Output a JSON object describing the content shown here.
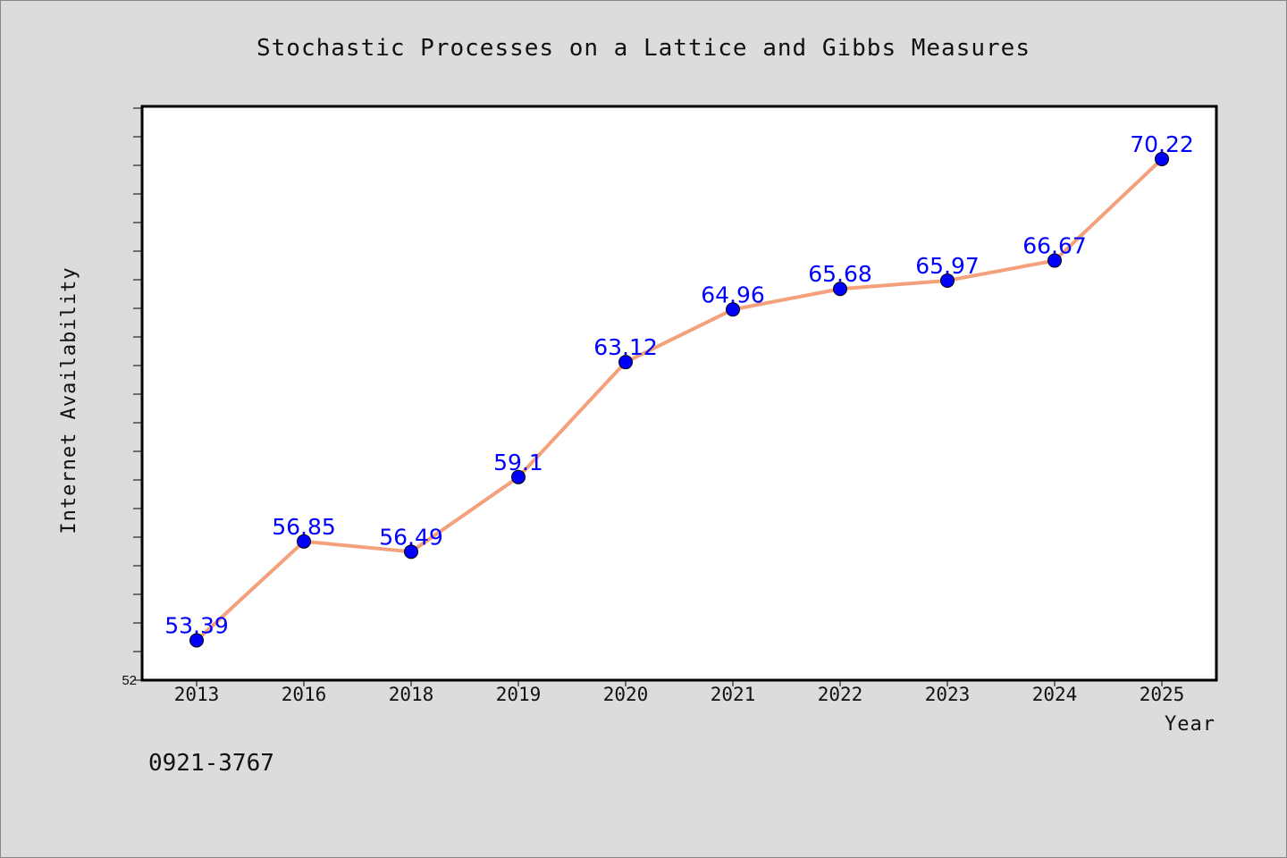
{
  "chart_data": {
    "type": "line",
    "title": "Stochastic Processes on a Lattice and Gibbs Measures",
    "xlabel": "Year",
    "ylabel": "Internet Availability",
    "categories": [
      "2013",
      "2016",
      "2018",
      "2019",
      "2020",
      "2021",
      "2022",
      "2023",
      "2024",
      "2025"
    ],
    "series": [
      {
        "values": [
          53.39,
          56.85,
          56.49,
          59.1,
          63.12,
          64.96,
          65.68,
          65.97,
          66.67,
          70.22
        ],
        "labels": [
          "53.39",
          "56.85",
          "56.49",
          "59.1",
          "63.12",
          "64.96",
          "65.68",
          "65.97",
          "66.67",
          "70.22"
        ]
      }
    ],
    "y_tick_labels": [
      "52"
    ],
    "ylim": [
      52,
      72
    ],
    "grid": false,
    "line_color": "#f4a07a",
    "marker_color": "#0000ff",
    "label_color": "#0000ff"
  },
  "footnote": "0921-3767",
  "colors": {
    "background": "#dcdcdc",
    "plot_background": "#ffffff"
  }
}
